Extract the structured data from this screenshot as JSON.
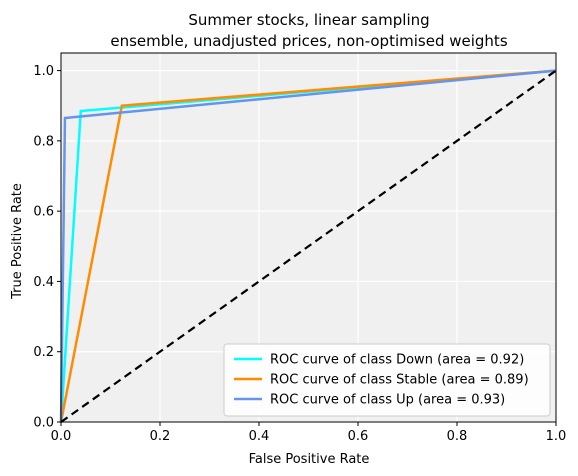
{
  "chart_data": {
    "type": "line",
    "title_line1": "Summer stocks, linear sampling",
    "title_line2": "ensemble, unadjusted prices, non-optimised weights",
    "xlabel": "False Positive Rate",
    "ylabel": "True Positive Rate",
    "xlim": [
      0.0,
      1.0
    ],
    "ylim": [
      0.0,
      1.05
    ],
    "xticks": [
      0.0,
      0.2,
      0.4,
      0.6,
      0.8,
      1.0
    ],
    "yticks": [
      0.0,
      0.2,
      0.4,
      0.6,
      0.8,
      1.0
    ],
    "xtick_labels": [
      "0.0",
      "0.2",
      "0.4",
      "0.6",
      "0.8",
      "1.0"
    ],
    "ytick_labels": [
      "0.0",
      "0.2",
      "0.4",
      "0.6",
      "0.8",
      "1.0"
    ],
    "grid": true,
    "background": "#f0f0f0",
    "legend_position": "lower-right",
    "series": [
      {
        "name": "ROC curve of class Down (area = 0.92)",
        "color": "#00ffff",
        "x": [
          0.0,
          0.04,
          1.0
        ],
        "y": [
          0.0,
          0.885,
          1.0
        ]
      },
      {
        "name": "ROC curve of class Stable (area = 0.89)",
        "color": "#ff8c00",
        "x": [
          0.0,
          0.123,
          1.0
        ],
        "y": [
          0.0,
          0.9,
          1.0
        ]
      },
      {
        "name": "ROC curve of class Up (area = 0.93)",
        "color": "#6495ed",
        "x": [
          0.0,
          0.008,
          1.0
        ],
        "y": [
          0.0,
          0.865,
          1.0
        ]
      }
    ],
    "reference_line": {
      "color": "#000000",
      "style": "dashed",
      "x": [
        0.0,
        1.0
      ],
      "y": [
        0.0,
        1.0
      ]
    }
  }
}
